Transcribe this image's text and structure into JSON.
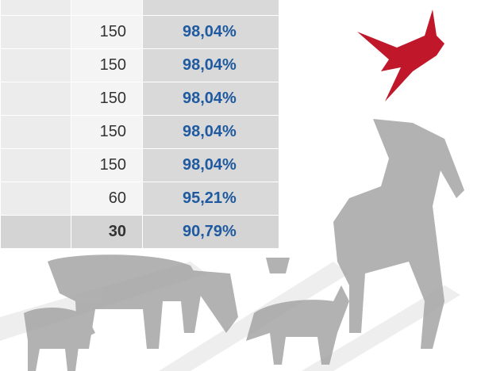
{
  "table": {
    "rows": [
      [
        "150",
        "98,04%"
      ],
      [
        "150",
        "98,04%"
      ],
      [
        "150",
        "98,04%"
      ],
      [
        "150",
        "98,04%"
      ],
      [
        "150",
        "98,04%"
      ],
      [
        "60",
        "95,21%"
      ],
      [
        "30",
        "90,79%"
      ]
    ]
  }
}
